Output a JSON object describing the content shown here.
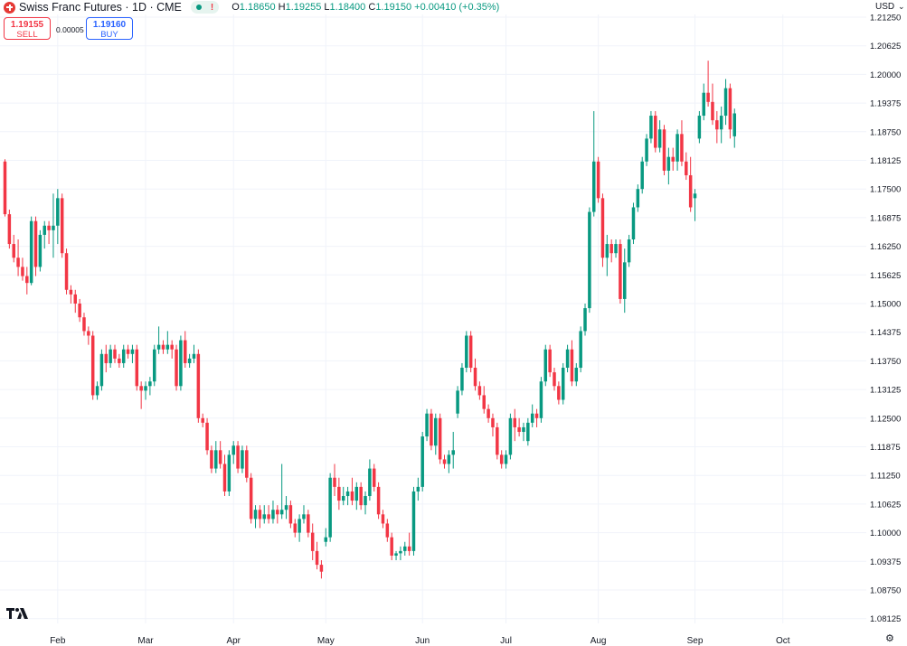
{
  "header": {
    "symbol": "Swiss Franc Futures · 1D · CME",
    "status_warning": "!",
    "open_label": "O",
    "open": "1.18650",
    "high_label": "H",
    "high": "1.19255",
    "low_label": "L",
    "low": "1.18400",
    "close_label": "C",
    "close": "1.19150",
    "change": "+0.00410 (+0.35%)"
  },
  "trade": {
    "sell_price": "1.19155",
    "sell_label": "SELL",
    "spread": "0.00005",
    "buy_price": "1.19160",
    "buy_label": "BUY"
  },
  "currency": "USD",
  "colors": {
    "up": "#089981",
    "down": "#f23645",
    "grid": "#f0f3fa",
    "text": "#131722"
  },
  "chart_data": {
    "type": "candlestick",
    "y_ticks": [
      "1.21250",
      "1.20625",
      "1.20000",
      "1.19375",
      "1.18750",
      "1.18125",
      "1.17500",
      "1.16875",
      "1.16250",
      "1.15625",
      "1.15000",
      "1.14375",
      "1.13750",
      "1.13125",
      "1.12500",
      "1.11875",
      "1.11250",
      "1.10625",
      "1.10000",
      "1.09375",
      "1.08750",
      "1.08125"
    ],
    "x_ticks": [
      {
        "label": "Feb",
        "index": 12
      },
      {
        "label": "Mar",
        "index": 32
      },
      {
        "label": "Apr",
        "index": 52
      },
      {
        "label": "May",
        "index": 73
      },
      {
        "label": "Jun",
        "index": 95
      },
      {
        "label": "Jul",
        "index": 114
      },
      {
        "label": "Aug",
        "index": 135
      },
      {
        "label": "Sep",
        "index": 157
      },
      {
        "label": "Oct",
        "index": 177
      }
    ],
    "candles": [
      [
        1.181,
        1.1815,
        1.169,
        1.1695
      ],
      [
        1.1695,
        1.1705,
        1.162,
        1.163
      ],
      [
        1.163,
        1.165,
        1.159,
        1.16
      ],
      [
        1.16,
        1.164,
        1.156,
        1.158
      ],
      [
        1.158,
        1.16,
        1.155,
        1.156
      ],
      [
        1.156,
        1.158,
        1.152,
        1.1545
      ],
      [
        1.1545,
        1.169,
        1.154,
        1.168
      ],
      [
        1.168,
        1.169,
        1.156,
        1.158
      ],
      [
        1.158,
        1.166,
        1.157,
        1.165
      ],
      [
        1.165,
        1.168,
        1.162,
        1.167
      ],
      [
        1.167,
        1.168,
        1.163,
        1.166
      ],
      [
        1.166,
        1.174,
        1.16,
        1.167
      ],
      [
        1.167,
        1.175,
        1.163,
        1.173
      ],
      [
        1.173,
        1.174,
        1.16,
        1.161
      ],
      [
        1.161,
        1.162,
        1.152,
        1.153
      ],
      [
        1.153,
        1.154,
        1.15,
        1.152
      ],
      [
        1.152,
        1.153,
        1.148,
        1.15
      ],
      [
        1.15,
        1.151,
        1.146,
        1.147
      ],
      [
        1.147,
        1.148,
        1.143,
        1.144
      ],
      [
        1.144,
        1.145,
        1.141,
        1.143
      ],
      [
        1.143,
        1.144,
        1.129,
        1.13
      ],
      [
        1.13,
        1.133,
        1.129,
        1.132
      ],
      [
        1.132,
        1.14,
        1.131,
        1.139
      ],
      [
        1.139,
        1.141,
        1.135,
        1.137
      ],
      [
        1.137,
        1.141,
        1.136,
        1.14
      ],
      [
        1.14,
        1.141,
        1.137,
        1.138
      ],
      [
        1.138,
        1.139,
        1.136,
        1.137
      ],
      [
        1.137,
        1.141,
        1.136,
        1.14
      ],
      [
        1.14,
        1.141,
        1.138,
        1.139
      ],
      [
        1.139,
        1.141,
        1.137,
        1.14
      ],
      [
        1.14,
        1.141,
        1.131,
        1.132
      ],
      [
        1.132,
        1.133,
        1.127,
        1.131
      ],
      [
        1.131,
        1.133,
        1.129,
        1.132
      ],
      [
        1.132,
        1.134,
        1.13,
        1.133
      ],
      [
        1.133,
        1.141,
        1.132,
        1.14
      ],
      [
        1.14,
        1.145,
        1.139,
        1.141
      ],
      [
        1.141,
        1.142,
        1.139,
        1.14
      ],
      [
        1.14,
        1.144,
        1.139,
        1.141
      ],
      [
        1.141,
        1.142,
        1.138,
        1.14
      ],
      [
        1.14,
        1.141,
        1.131,
        1.132
      ],
      [
        1.132,
        1.143,
        1.131,
        1.142
      ],
      [
        1.142,
        1.144,
        1.136,
        1.137
      ],
      [
        1.137,
        1.139,
        1.136,
        1.138
      ],
      [
        1.138,
        1.141,
        1.137,
        1.139
      ],
      [
        1.139,
        1.14,
        1.124,
        1.125
      ],
      [
        1.125,
        1.126,
        1.123,
        1.124
      ],
      [
        1.124,
        1.125,
        1.117,
        1.118
      ],
      [
        1.118,
        1.119,
        1.113,
        1.114
      ],
      [
        1.114,
        1.12,
        1.113,
        1.118
      ],
      [
        1.118,
        1.12,
        1.114,
        1.115
      ],
      [
        1.115,
        1.117,
        1.108,
        1.109
      ],
      [
        1.109,
        1.118,
        1.108,
        1.117
      ],
      [
        1.117,
        1.12,
        1.115,
        1.119
      ],
      [
        1.119,
        1.12,
        1.113,
        1.114
      ],
      [
        1.114,
        1.119,
        1.113,
        1.118
      ],
      [
        1.118,
        1.119,
        1.111,
        1.112
      ],
      [
        1.112,
        1.113,
        1.102,
        1.103
      ],
      [
        1.103,
        1.106,
        1.101,
        1.105
      ],
      [
        1.105,
        1.106,
        1.101,
        1.103
      ],
      [
        1.103,
        1.106,
        1.102,
        1.104
      ],
      [
        1.104,
        1.106,
        1.102,
        1.103
      ],
      [
        1.103,
        1.107,
        1.102,
        1.105
      ],
      [
        1.105,
        1.106,
        1.102,
        1.104
      ],
      [
        1.104,
        1.115,
        1.103,
        1.105
      ],
      [
        1.105,
        1.108,
        1.103,
        1.106
      ],
      [
        1.106,
        1.107,
        1.101,
        1.102
      ],
      [
        1.102,
        1.103,
        1.099,
        1.1
      ],
      [
        1.1,
        1.104,
        1.098,
        1.103
      ],
      [
        1.103,
        1.106,
        1.102,
        1.104
      ],
      [
        1.104,
        1.105,
        1.099,
        1.1
      ],
      [
        1.1,
        1.102,
        1.094,
        1.096
      ],
      [
        1.096,
        1.098,
        1.092,
        1.093
      ],
      [
        1.093,
        1.094,
        1.09,
        1.0915
      ],
      [
        1.098,
        1.101,
        1.097,
        1.099
      ],
      [
        1.099,
        1.113,
        1.098,
        1.112
      ],
      [
        1.112,
        1.115,
        1.108,
        1.11
      ],
      [
        1.11,
        1.112,
        1.105,
        1.107
      ],
      [
        1.107,
        1.11,
        1.106,
        1.108
      ],
      [
        1.108,
        1.11,
        1.106,
        1.109
      ],
      [
        1.109,
        1.112,
        1.106,
        1.107
      ],
      [
        1.107,
        1.111,
        1.105,
        1.11
      ],
      [
        1.11,
        1.111,
        1.105,
        1.106
      ],
      [
        1.106,
        1.109,
        1.104,
        1.108
      ],
      [
        1.108,
        1.116,
        1.107,
        1.114
      ],
      [
        1.114,
        1.115,
        1.109,
        1.11
      ],
      [
        1.11,
        1.111,
        1.103,
        1.104
      ],
      [
        1.104,
        1.105,
        1.101,
        1.102
      ],
      [
        1.102,
        1.103,
        1.098,
        1.099
      ],
      [
        1.099,
        1.1,
        1.094,
        1.095
      ],
      [
        1.095,
        1.096,
        1.094,
        1.0955
      ],
      [
        1.0955,
        1.097,
        1.094,
        1.096
      ],
      [
        1.096,
        1.098,
        1.095,
        1.097
      ],
      [
        1.097,
        1.1,
        1.095,
        1.096
      ],
      [
        1.096,
        1.11,
        1.095,
        1.109
      ],
      [
        1.109,
        1.112,
        1.107,
        1.11
      ],
      [
        1.11,
        1.122,
        1.109,
        1.121
      ],
      [
        1.121,
        1.127,
        1.12,
        1.126
      ],
      [
        1.126,
        1.127,
        1.118,
        1.119
      ],
      [
        1.119,
        1.126,
        1.117,
        1.125
      ],
      [
        1.125,
        1.126,
        1.115,
        1.116
      ],
      [
        1.116,
        1.117,
        1.114,
        1.115
      ],
      [
        1.115,
        1.118,
        1.113,
        1.117
      ],
      [
        1.117,
        1.122,
        1.114,
        1.118
      ],
      [
        1.126,
        1.132,
        1.125,
        1.131
      ],
      [
        1.131,
        1.137,
        1.13,
        1.136
      ],
      [
        1.136,
        1.144,
        1.135,
        1.143
      ],
      [
        1.143,
        1.144,
        1.135,
        1.136
      ],
      [
        1.136,
        1.138,
        1.131,
        1.132
      ],
      [
        1.132,
        1.133,
        1.129,
        1.13
      ],
      [
        1.13,
        1.132,
        1.126,
        1.127
      ],
      [
        1.127,
        1.128,
        1.124,
        1.125
      ],
      [
        1.125,
        1.126,
        1.121,
        1.123
      ],
      [
        1.123,
        1.124,
        1.116,
        1.117
      ],
      [
        1.117,
        1.118,
        1.114,
        1.115
      ],
      [
        1.115,
        1.118,
        1.114,
        1.117
      ],
      [
        1.117,
        1.126,
        1.116,
        1.125
      ],
      [
        1.125,
        1.127,
        1.12,
        1.123
      ],
      [
        1.123,
        1.125,
        1.121,
        1.122
      ],
      [
        1.122,
        1.124,
        1.12,
        1.123
      ],
      [
        1.12,
        1.125,
        1.119,
        1.124
      ],
      [
        1.124,
        1.128,
        1.123,
        1.126
      ],
      [
        1.126,
        1.127,
        1.123,
        1.125
      ],
      [
        1.125,
        1.134,
        1.124,
        1.133
      ],
      [
        1.133,
        1.141,
        1.132,
        1.14
      ],
      [
        1.14,
        1.141,
        1.134,
        1.135
      ],
      [
        1.135,
        1.136,
        1.131,
        1.132
      ],
      [
        1.132,
        1.133,
        1.128,
        1.129
      ],
      [
        1.129,
        1.137,
        1.128,
        1.136
      ],
      [
        1.136,
        1.141,
        1.135,
        1.14
      ],
      [
        1.14,
        1.142,
        1.132,
        1.133
      ],
      [
        1.133,
        1.137,
        1.132,
        1.136
      ],
      [
        1.136,
        1.145,
        1.135,
        1.144
      ],
      [
        1.144,
        1.15,
        1.143,
        1.149
      ],
      [
        1.149,
        1.171,
        1.148,
        1.17
      ],
      [
        1.17,
        1.192,
        1.169,
        1.181
      ],
      [
        1.181,
        1.182,
        1.172,
        1.173
      ],
      [
        1.173,
        1.174,
        1.158,
        1.16
      ],
      [
        1.16,
        1.165,
        1.156,
        1.163
      ],
      [
        1.163,
        1.164,
        1.159,
        1.161
      ],
      [
        1.161,
        1.164,
        1.16,
        1.163
      ],
      [
        1.163,
        1.164,
        1.15,
        1.151
      ],
      [
        1.151,
        1.162,
        1.148,
        1.159
      ],
      [
        1.159,
        1.165,
        1.158,
        1.164
      ],
      [
        1.164,
        1.172,
        1.163,
        1.171
      ],
      [
        1.171,
        1.176,
        1.17,
        1.175
      ],
      [
        1.175,
        1.182,
        1.174,
        1.181
      ],
      [
        1.181,
        1.187,
        1.18,
        1.186
      ],
      [
        1.186,
        1.192,
        1.185,
        1.191
      ],
      [
        1.191,
        1.192,
        1.183,
        1.184
      ],
      [
        1.184,
        1.19,
        1.183,
        1.188
      ],
      [
        1.188,
        1.189,
        1.178,
        1.179
      ],
      [
        1.179,
        1.184,
        1.176,
        1.182
      ],
      [
        1.182,
        1.184,
        1.179,
        1.181
      ],
      [
        1.181,
        1.188,
        1.179,
        1.187
      ],
      [
        1.187,
        1.19,
        1.18,
        1.181
      ],
      [
        1.181,
        1.183,
        1.177,
        1.178
      ],
      [
        1.178,
        1.182,
        1.17,
        1.171
      ],
      [
        1.173,
        1.175,
        1.168,
        1.174
      ],
      [
        1.186,
        1.192,
        1.185,
        1.191
      ],
      [
        1.191,
        1.198,
        1.19,
        1.196
      ],
      [
        1.196,
        1.203,
        1.193,
        1.194
      ],
      [
        1.194,
        1.198,
        1.189,
        1.19
      ],
      [
        1.19,
        1.192,
        1.185,
        1.188
      ],
      [
        1.188,
        1.193,
        1.185,
        1.191
      ],
      [
        1.191,
        1.199,
        1.189,
        1.197
      ],
      [
        1.197,
        1.198,
        1.186,
        1.188
      ],
      [
        1.1865,
        1.19255,
        1.184,
        1.1915
      ]
    ]
  }
}
